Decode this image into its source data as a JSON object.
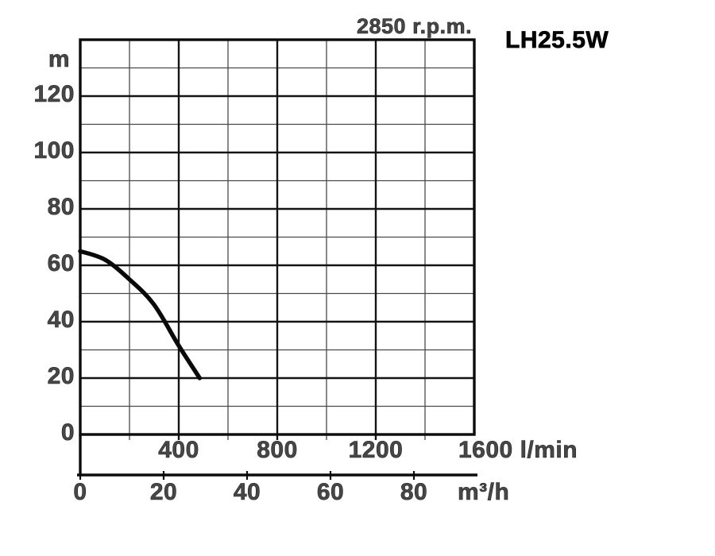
{
  "chart_data": {
    "type": "line",
    "title": "2850 r.p.m.",
    "model": "LH25.5W",
    "grid": true,
    "legend_position": "none",
    "y_axis": {
      "unit": "m",
      "ticks": [
        120,
        100,
        80,
        60,
        40,
        20,
        0
      ],
      "range": [
        0,
        140
      ],
      "minor_step": 10,
      "major_step": 20
    },
    "x_axis_lmin": {
      "unit": "l/min",
      "ticks": [
        400,
        800,
        1200
      ],
      "end_tick": 1600,
      "range": [
        0,
        1600
      ],
      "minor_step": 200,
      "major_step": 400
    },
    "x_axis_m3h": {
      "unit": "m³/h",
      "ticks": [
        0,
        20,
        40,
        60,
        80
      ],
      "lmin_per_m3h": 16.667
    },
    "series": [
      {
        "name": "head-vs-flow-curve",
        "color": "#0a0a0a",
        "points_q_lmin_h_m": [
          [
            0,
            65
          ],
          [
            100,
            62
          ],
          [
            200,
            55
          ],
          [
            300,
            46
          ],
          [
            400,
            31.5
          ],
          [
            485,
            20
          ]
        ]
      }
    ]
  },
  "colors": {
    "background": "#ffffff",
    "grid_minor": "#4a4a4a",
    "grid_major": "#141414",
    "frame": "#0c0c0c",
    "tick_text": "#474747",
    "model_text": "#050505"
  }
}
